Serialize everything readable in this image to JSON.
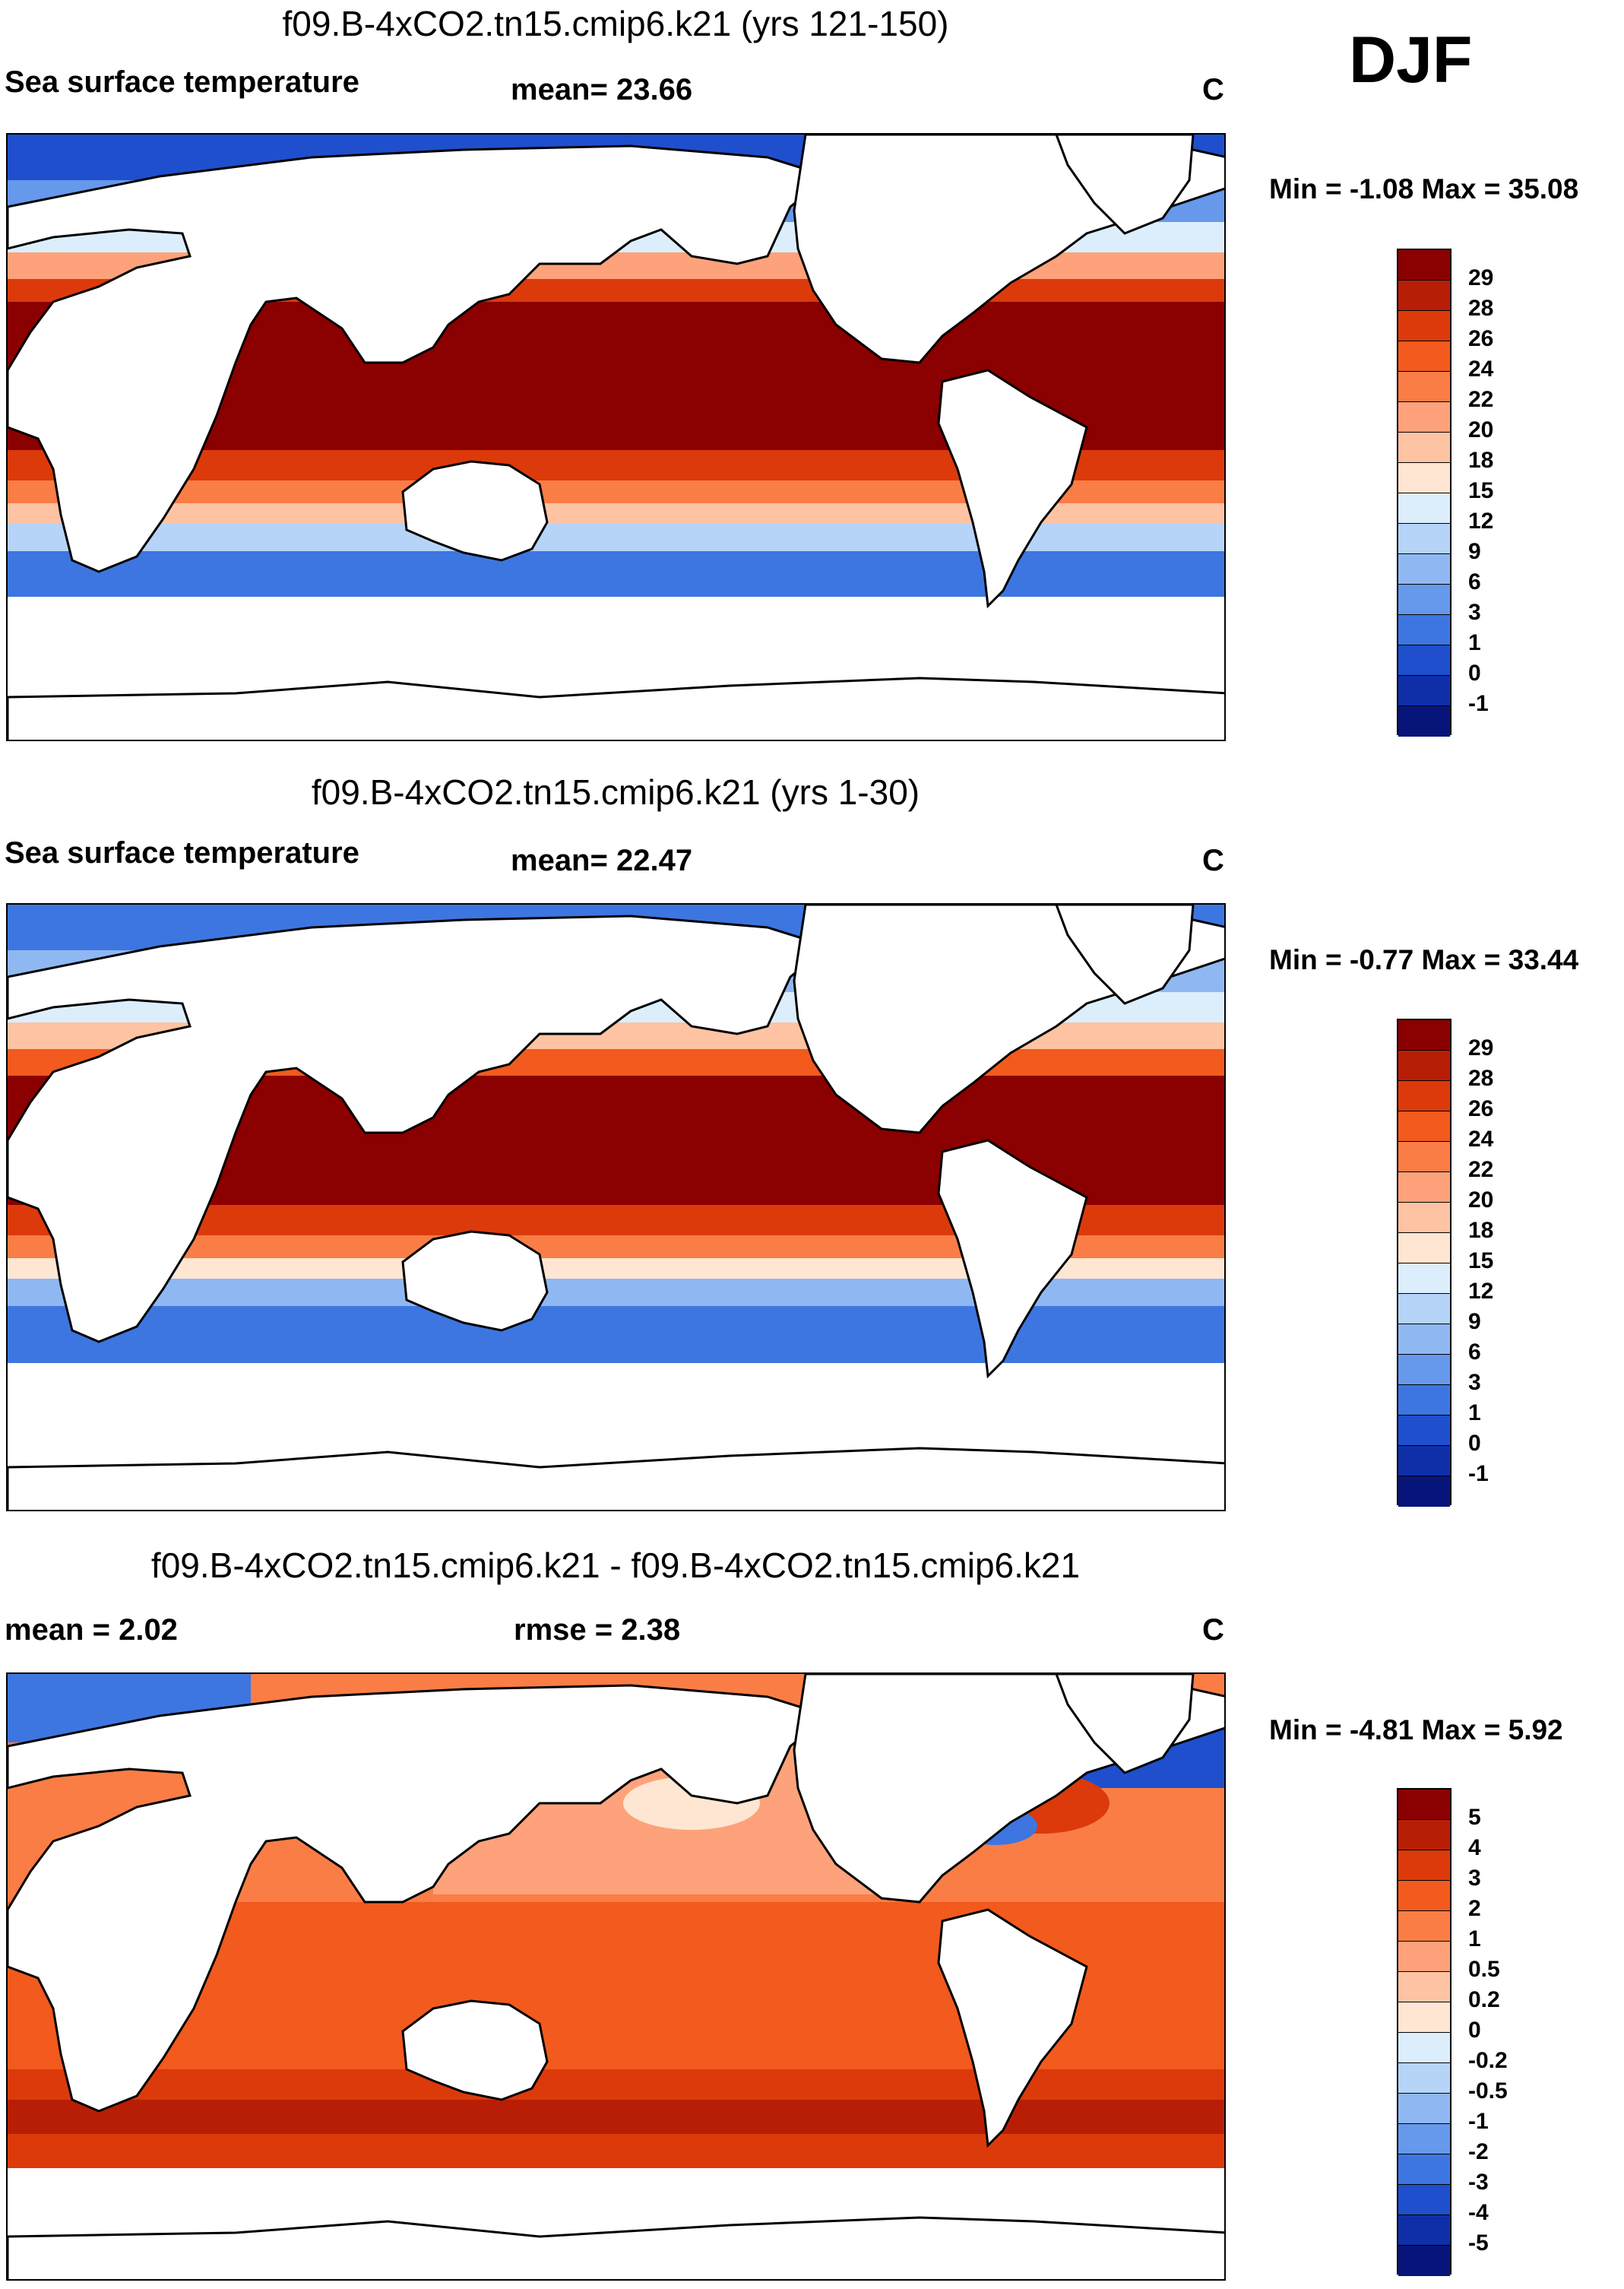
{
  "season": "DJF",
  "panels": [
    {
      "title": "f09.B-4xCO2.tn15.cmip6.k21 (yrs 121-150)",
      "left_label": "Sea surface temperature",
      "mid_label": "mean=  23.66",
      "unit": "C",
      "minmax": "Min =  -1.08 Max =  35.08",
      "colorbar": {
        "ticks": [
          "29",
          "28",
          "26",
          "24",
          "22",
          "20",
          "18",
          "15",
          "12",
          "9",
          "6",
          "3",
          "1",
          "0",
          "-1"
        ],
        "colors": [
          "#8b0000",
          "#b81e05",
          "#dc3a0b",
          "#f25a1e",
          "#fa7d46",
          "#fda27a",
          "#fec3a2",
          "#fee6d3",
          "#dceefc",
          "#b6d4f8",
          "#8fb8f2",
          "#6698eb",
          "#3d76e0",
          "#1f4fcd",
          "#0f2fa8",
          "#07147a"
        ]
      }
    },
    {
      "title": "f09.B-4xCO2.tn15.cmip6.k21 (yrs 1-30)",
      "left_label": "Sea surface temperature",
      "mid_label": "mean=  22.47",
      "unit": "C",
      "minmax": "Min =  -0.77 Max =  33.44",
      "colorbar": {
        "ticks": [
          "29",
          "28",
          "26",
          "24",
          "22",
          "20",
          "18",
          "15",
          "12",
          "9",
          "6",
          "3",
          "1",
          "0",
          "-1"
        ],
        "colors": [
          "#8b0000",
          "#b81e05",
          "#dc3a0b",
          "#f25a1e",
          "#fa7d46",
          "#fda27a",
          "#fec3a2",
          "#fee6d3",
          "#dceefc",
          "#b6d4f8",
          "#8fb8f2",
          "#6698eb",
          "#3d76e0",
          "#1f4fcd",
          "#0f2fa8",
          "#07147a"
        ]
      }
    },
    {
      "title": "f09.B-4xCO2.tn15.cmip6.k21 - f09.B-4xCO2.tn15.cmip6.k21",
      "left_label": "mean =    2.02",
      "mid_label": "rmse =    2.38",
      "unit": "C",
      "minmax": "Min =  -4.81 Max =    5.92",
      "colorbar": {
        "ticks": [
          "5",
          "4",
          "3",
          "2",
          "1",
          "0.5",
          "0.2",
          "0",
          "-0.2",
          "-0.5",
          "-1",
          "-2",
          "-3",
          "-4",
          "-5"
        ],
        "colors": [
          "#8b0000",
          "#b81e05",
          "#dc3a0b",
          "#f25a1e",
          "#fa7d46",
          "#fda27a",
          "#fec3a2",
          "#fee6d3",
          "#dceefc",
          "#b6d4f8",
          "#8fb8f2",
          "#6698eb",
          "#3d76e0",
          "#1f4fcd",
          "#0f2fa8",
          "#07147a"
        ]
      }
    }
  ]
}
